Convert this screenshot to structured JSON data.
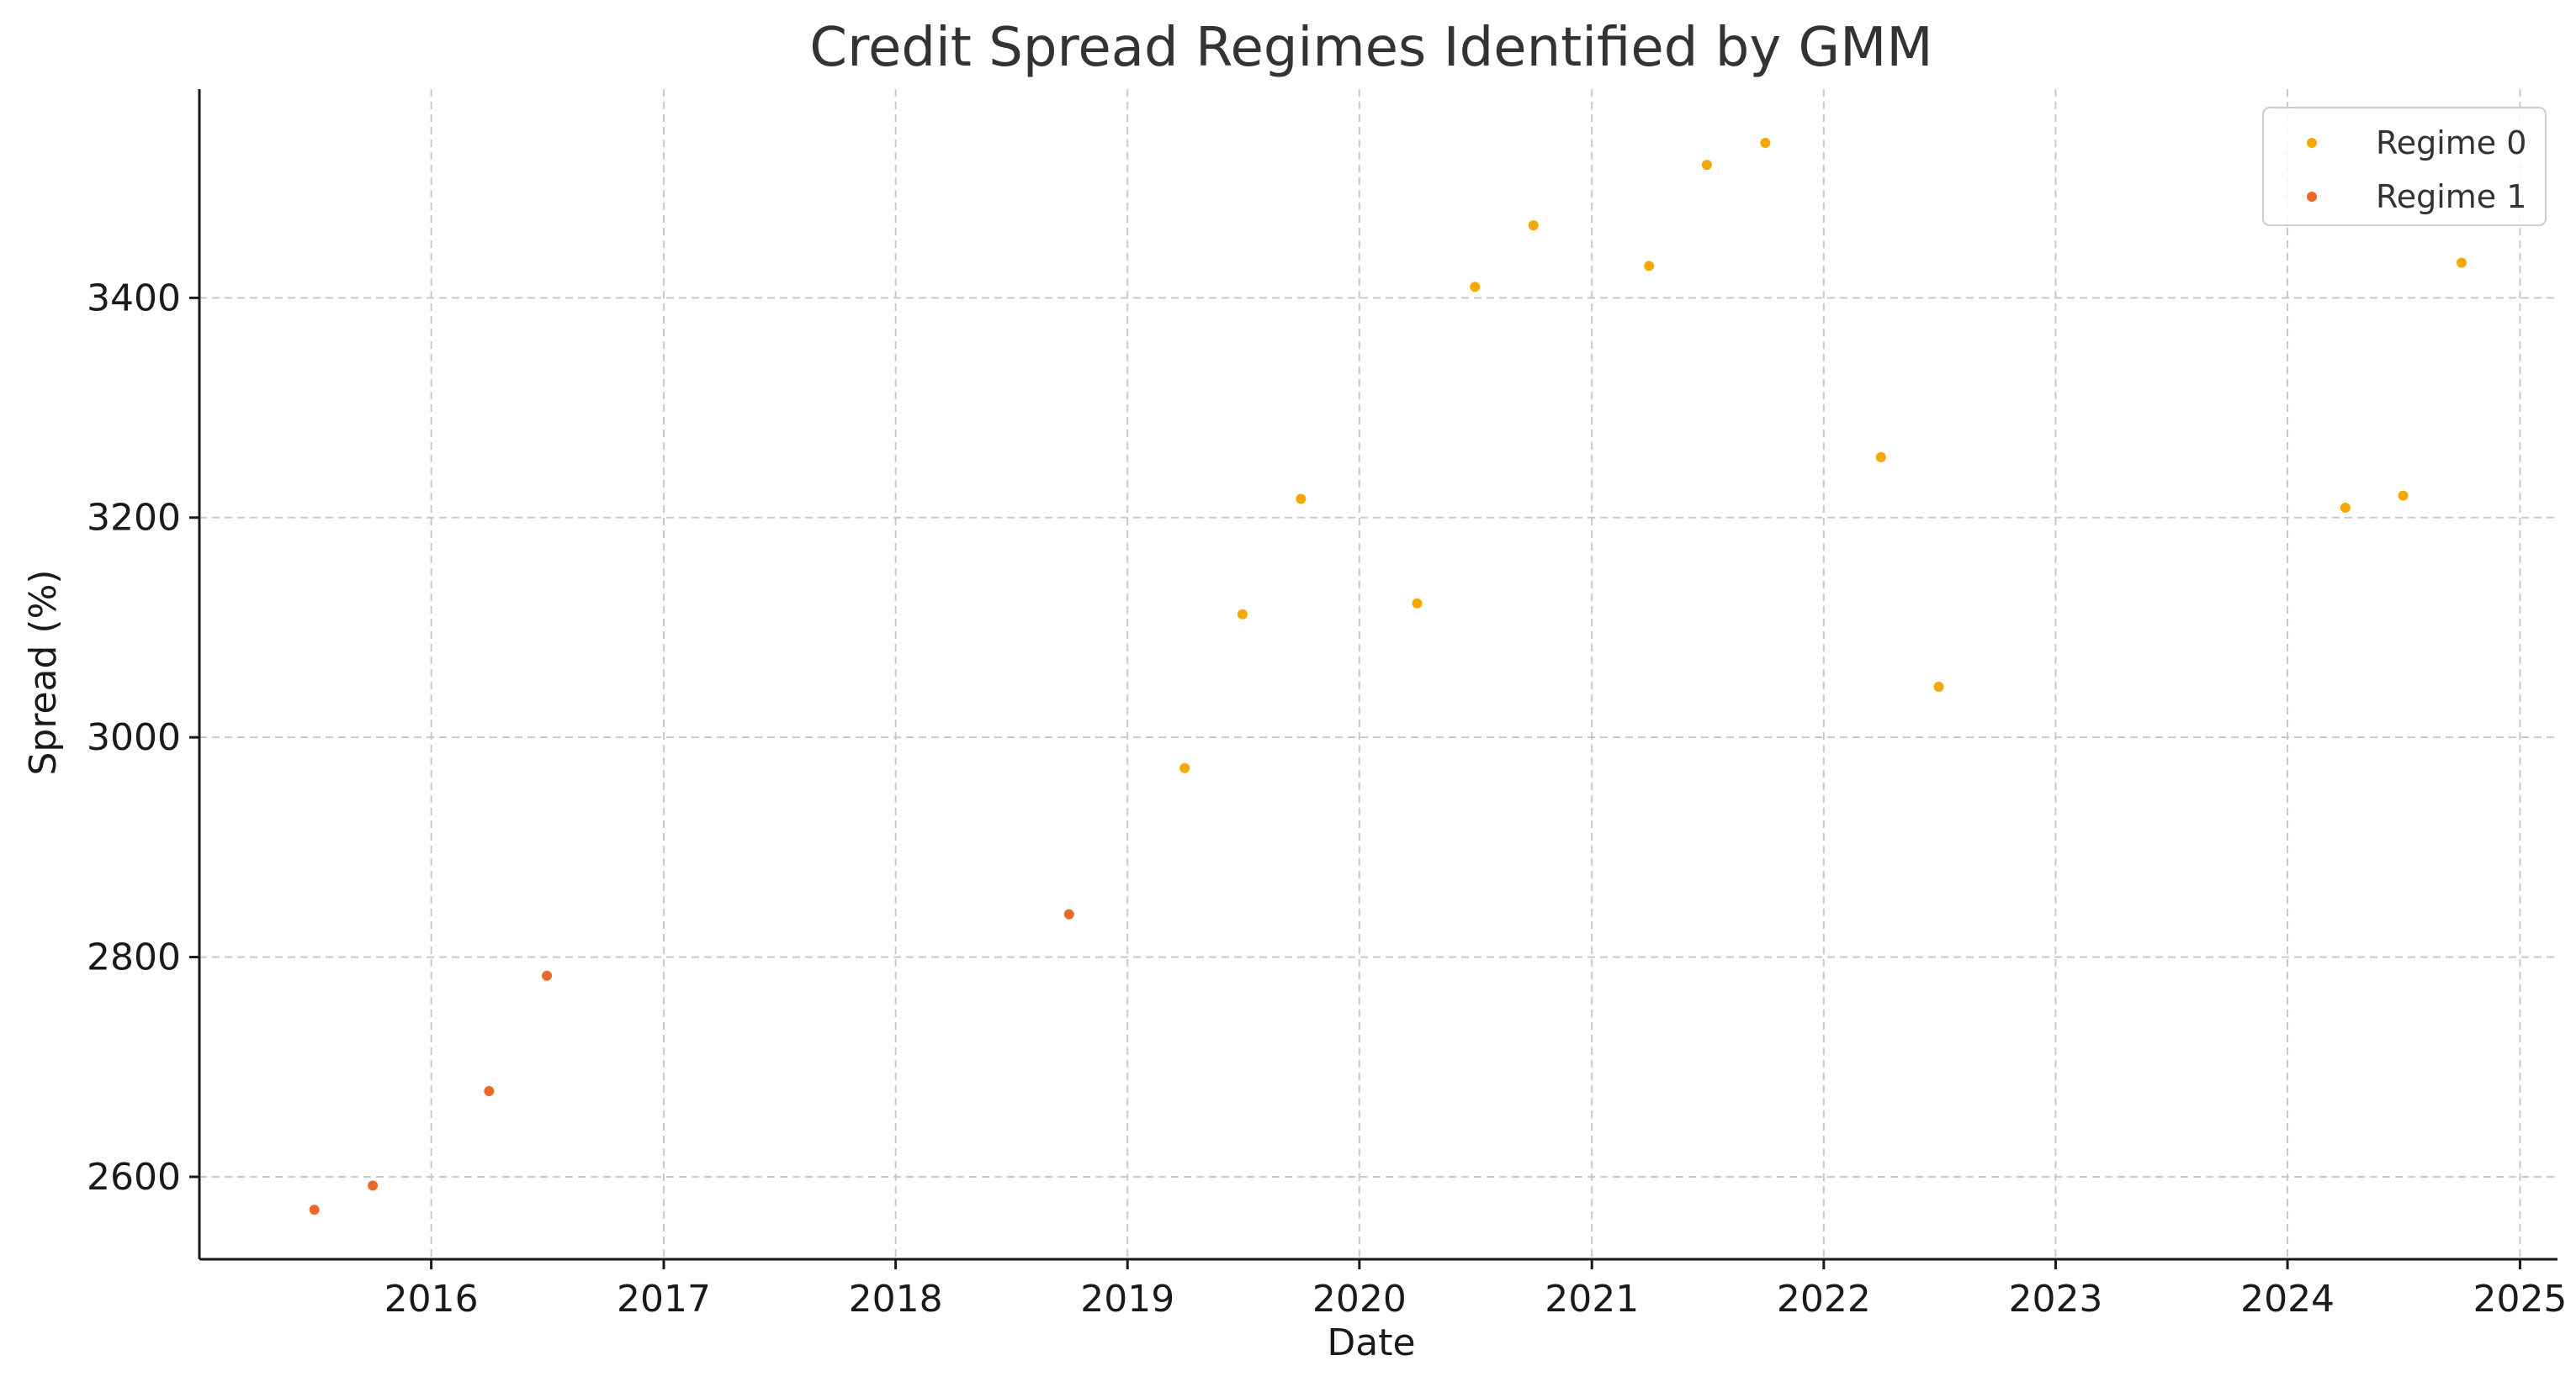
{
  "chart_data": {
    "type": "scatter",
    "title": "Credit Spread Regimes Identified by GMM",
    "xlabel": "Date",
    "ylabel": "Spread (%)",
    "xlim": [
      "2015-01-01",
      "2025-03-01"
    ],
    "ylim": [
      2525,
      3590
    ],
    "x_ticks": [
      "2016",
      "2017",
      "2018",
      "2019",
      "2020",
      "2021",
      "2022",
      "2023",
      "2024",
      "2025"
    ],
    "y_ticks": [
      2600,
      2800,
      3000,
      3200,
      3400
    ],
    "grid": true,
    "legend_position": "top-right",
    "series": [
      {
        "name": "Regime 0",
        "color": "#F5A800",
        "points": [
          {
            "x": "2019-04-01",
            "y": 2972
          },
          {
            "x": "2019-07-01",
            "y": 3112
          },
          {
            "x": "2019-10-01",
            "y": 3217
          },
          {
            "x": "2020-04-01",
            "y": 3122
          },
          {
            "x": "2020-07-01",
            "y": 3410
          },
          {
            "x": "2020-10-01",
            "y": 3466
          },
          {
            "x": "2021-04-01",
            "y": 3429
          },
          {
            "x": "2021-07-01",
            "y": 3521
          },
          {
            "x": "2021-10-01",
            "y": 3541
          },
          {
            "x": "2022-04-01",
            "y": 3255
          },
          {
            "x": "2022-07-01",
            "y": 3046
          },
          {
            "x": "2024-04-01",
            "y": 3209
          },
          {
            "x": "2024-07-01",
            "y": 3220
          },
          {
            "x": "2024-10-01",
            "y": 3432
          }
        ]
      },
      {
        "name": "Regime 1",
        "color": "#E8692A",
        "points": [
          {
            "x": "2015-07-01",
            "y": 2570
          },
          {
            "x": "2015-10-01",
            "y": 2592
          },
          {
            "x": "2016-04-01",
            "y": 2678
          },
          {
            "x": "2016-07-01",
            "y": 2783
          },
          {
            "x": "2018-10-01",
            "y": 2839
          }
        ]
      }
    ]
  }
}
